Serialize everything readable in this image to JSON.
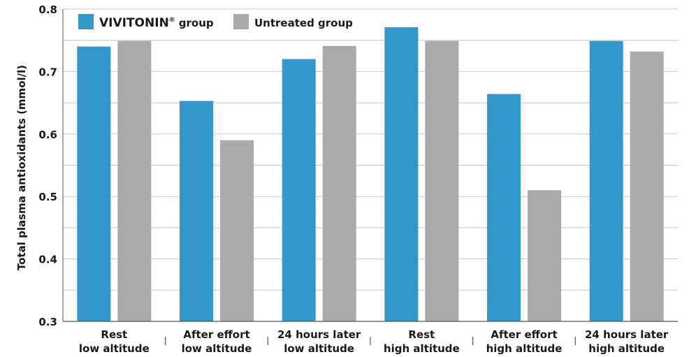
{
  "chart_data": {
    "type": "bar",
    "ylabel": "Total plasma antioxidants (mmol/l)",
    "ylim": [
      0.3,
      0.8
    ],
    "yticks": [
      "0.3",
      "0.4",
      "0.5",
      "0.6",
      "0.7",
      "0.8"
    ],
    "grid": true,
    "legend_position": "top-left",
    "categories": [
      [
        "Rest",
        "low altitude"
      ],
      [
        "After effort",
        "low altitude"
      ],
      [
        "24 hours later",
        "low altitude"
      ],
      [
        "Rest",
        "high altitude"
      ],
      [
        "After effort",
        "high altitude"
      ],
      [
        "24 hours later",
        "high altitude"
      ]
    ],
    "series": [
      {
        "name": "VIVITONIN",
        "name_mark": "®",
        "name_suffix": "group",
        "color": "#3497c9",
        "values": [
          0.74,
          0.653,
          0.72,
          0.771,
          0.664,
          0.749
        ]
      },
      {
        "name": "Untreated group",
        "color": "#aaaaaa",
        "values": [
          0.749,
          0.59,
          0.741,
          0.749,
          0.51,
          0.732
        ]
      }
    ]
  }
}
